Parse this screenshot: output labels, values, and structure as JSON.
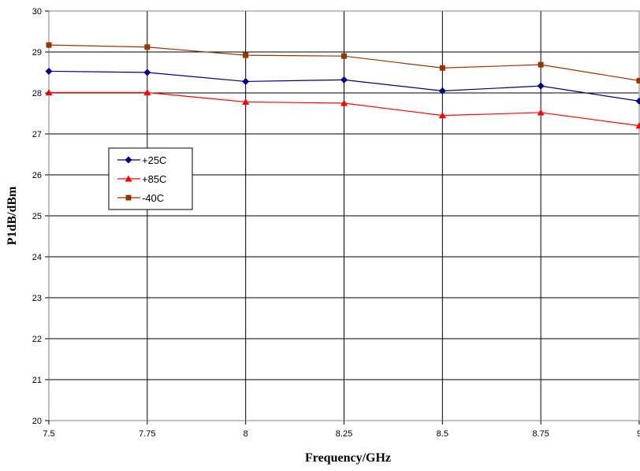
{
  "chart_data": {
    "type": "line",
    "title": "",
    "xlabel": "Frequency/GHz",
    "ylabel": "P1dB/dBm",
    "x": [
      7.5,
      7.75,
      8,
      8.25,
      8.5,
      8.75,
      9
    ],
    "x_tick_labels": [
      "7.5",
      "7.75",
      "8",
      "8.25",
      "8.5",
      "8.75",
      "9"
    ],
    "y_tick_labels": [
      "20",
      "21",
      "22",
      "23",
      "24",
      "25",
      "26",
      "27",
      "28",
      "29",
      "30"
    ],
    "xlim": [
      7.5,
      9
    ],
    "ylim": [
      20,
      30
    ],
    "grid": true,
    "legend_position": "left",
    "series": [
      {
        "name": "+25C",
        "color": "#000080",
        "marker": "diamond",
        "values": [
          28.53,
          28.5,
          28.28,
          28.32,
          28.05,
          28.17,
          27.8
        ]
      },
      {
        "name": "+85C",
        "color": "#ff0000",
        "marker": "triangle",
        "values": [
          28.01,
          28.01,
          27.78,
          27.75,
          27.45,
          27.52,
          27.2
        ]
      },
      {
        "name": "-40C",
        "color": "#993300",
        "marker": "square",
        "values": [
          29.17,
          29.12,
          28.92,
          28.9,
          28.61,
          28.69,
          28.3
        ]
      }
    ]
  }
}
